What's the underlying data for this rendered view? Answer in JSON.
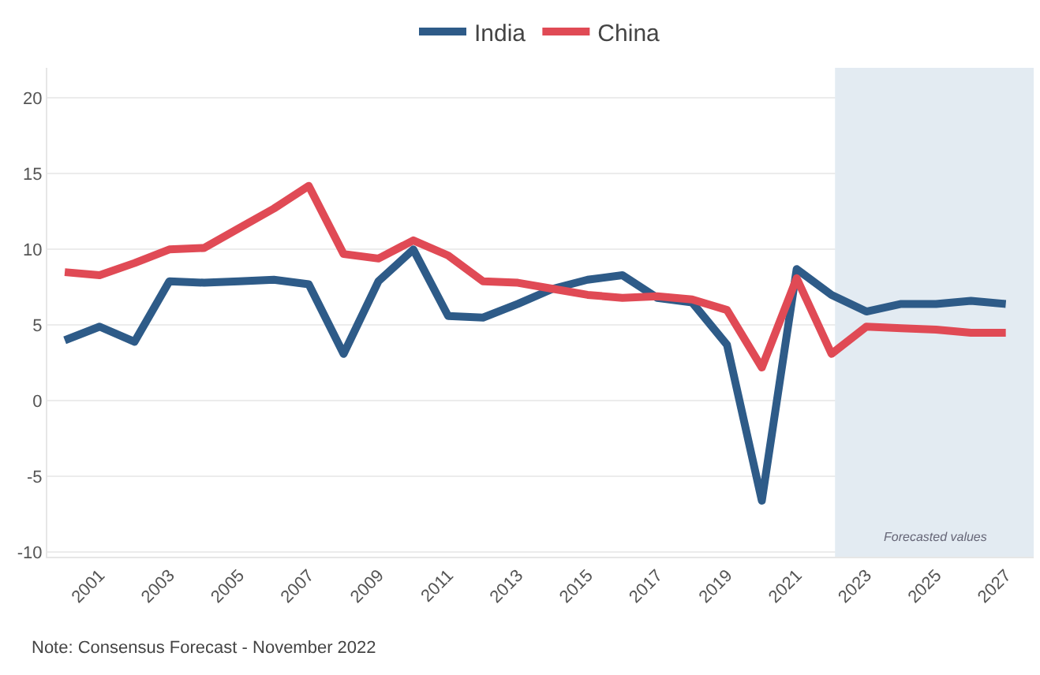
{
  "chart_data": {
    "type": "line",
    "x": [
      2000,
      2001,
      2002,
      2003,
      2004,
      2005,
      2006,
      2007,
      2008,
      2009,
      2010,
      2011,
      2012,
      2013,
      2014,
      2015,
      2016,
      2017,
      2018,
      2019,
      2020,
      2021,
      2022,
      2023,
      2024,
      2025,
      2026,
      2027
    ],
    "series": [
      {
        "name": "India",
        "color": "#2e5b88",
        "values": [
          4.0,
          4.9,
          3.9,
          7.9,
          7.8,
          7.9,
          8.0,
          7.7,
          3.1,
          7.9,
          10.0,
          5.6,
          5.5,
          6.4,
          7.4,
          8.0,
          8.3,
          6.8,
          6.5,
          3.7,
          -6.6,
          8.7,
          7.0,
          5.9,
          6.4,
          6.4,
          6.6,
          6.4
        ]
      },
      {
        "name": "China",
        "color": "#e04a55",
        "values": [
          8.5,
          8.3,
          9.1,
          10.0,
          10.1,
          11.4,
          12.7,
          14.2,
          9.7,
          9.4,
          10.6,
          9.6,
          7.9,
          7.8,
          7.4,
          7.0,
          6.8,
          6.9,
          6.7,
          6.0,
          2.2,
          8.1,
          3.1,
          4.9,
          4.8,
          4.7,
          4.5,
          4.5
        ]
      }
    ],
    "xlim": [
      1999.5,
      2027.8
    ],
    "xticks": [
      2001,
      2003,
      2005,
      2007,
      2009,
      2011,
      2013,
      2015,
      2017,
      2019,
      2021,
      2023,
      2025,
      2027
    ],
    "ylim": [
      -10.3,
      22
    ],
    "yticks": [
      -10,
      -5,
      0,
      5,
      10,
      15,
      20
    ],
    "bands": [
      {
        "axis": "x",
        "from": 2022.1,
        "to": 2027.8,
        "label": "Forecasted values",
        "color": "#e3ebf2"
      }
    ],
    "grid": "y",
    "legend": "top",
    "marker": "none",
    "line_style": "solid",
    "annotations": [
      "Note: Consensus Forecast - November 2022"
    ]
  }
}
